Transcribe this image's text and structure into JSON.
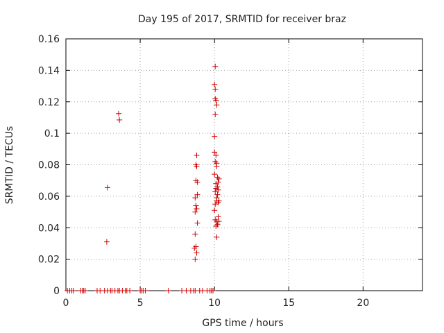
{
  "chart_data": {
    "type": "scatter",
    "title": "Day 195 of 2017, SRMTID for receiver braz",
    "xlabel": "GPS time / hours",
    "ylabel": "SRMTID / TECUs",
    "xlim": [
      0,
      24
    ],
    "ylim": [
      0,
      0.16
    ],
    "xticks": [
      0,
      5,
      10,
      15,
      20
    ],
    "xtick_labels": [
      "0",
      "5",
      "10",
      "15",
      "20"
    ],
    "yticks": [
      0,
      0.02,
      0.04,
      0.06,
      0.08,
      0.1,
      0.12,
      0.14,
      0.16
    ],
    "ytick_labels": [
      "0",
      "0.02",
      "0.04",
      "0.06",
      "0.08",
      "0.1",
      "0.12",
      "0.14",
      "0.16"
    ],
    "grid": true,
    "marker": "+",
    "color": "#cc0000",
    "series": [
      {
        "name": "SRMTID",
        "points": [
          [
            3.55,
            0.1125
          ],
          [
            3.6,
            0.1085
          ],
          [
            2.8,
            0.0655
          ],
          [
            2.75,
            0.031
          ],
          [
            10.05,
            0.1425
          ],
          [
            10.0,
            0.131
          ],
          [
            10.05,
            0.128
          ],
          [
            10.05,
            0.122
          ],
          [
            10.1,
            0.121
          ],
          [
            10.15,
            0.118
          ],
          [
            10.05,
            0.112
          ],
          [
            10.0,
            0.098
          ],
          [
            10.0,
            0.088
          ],
          [
            10.1,
            0.086
          ],
          [
            10.05,
            0.082
          ],
          [
            10.15,
            0.081
          ],
          [
            10.15,
            0.079
          ],
          [
            10.0,
            0.074
          ],
          [
            10.2,
            0.072
          ],
          [
            10.3,
            0.071
          ],
          [
            10.25,
            0.069
          ],
          [
            10.1,
            0.068
          ],
          [
            10.2,
            0.066
          ],
          [
            10.1,
            0.065
          ],
          [
            10.25,
            0.064
          ],
          [
            10.05,
            0.063
          ],
          [
            10.2,
            0.061
          ],
          [
            10.15,
            0.059
          ],
          [
            10.15,
            0.057
          ],
          [
            10.25,
            0.056
          ],
          [
            10.05,
            0.055
          ],
          [
            10.3,
            0.057
          ],
          [
            10.0,
            0.051
          ],
          [
            10.25,
            0.047
          ],
          [
            10.05,
            0.045
          ],
          [
            10.15,
            0.044
          ],
          [
            10.3,
            0.044
          ],
          [
            10.2,
            0.042
          ],
          [
            10.1,
            0.041
          ],
          [
            10.15,
            0.034
          ],
          [
            8.8,
            0.086
          ],
          [
            8.75,
            0.08
          ],
          [
            8.8,
            0.079
          ],
          [
            8.75,
            0.07
          ],
          [
            8.85,
            0.069
          ],
          [
            8.85,
            0.061
          ],
          [
            8.7,
            0.059
          ],
          [
            8.75,
            0.054
          ],
          [
            8.8,
            0.052
          ],
          [
            8.7,
            0.05
          ],
          [
            8.85,
            0.043
          ],
          [
            8.7,
            0.036
          ],
          [
            8.75,
            0.028
          ],
          [
            8.65,
            0.027
          ],
          [
            8.8,
            0.024
          ],
          [
            8.7,
            0.02
          ],
          [
            0.1,
            0
          ],
          [
            0.25,
            0
          ],
          [
            0.4,
            0
          ],
          [
            0.5,
            0
          ],
          [
            1.0,
            0
          ],
          [
            1.1,
            0
          ],
          [
            1.2,
            0
          ],
          [
            1.3,
            0
          ],
          [
            2.1,
            0
          ],
          [
            2.3,
            0
          ],
          [
            2.6,
            0
          ],
          [
            2.8,
            0
          ],
          [
            3.0,
            0
          ],
          [
            3.1,
            0
          ],
          [
            3.3,
            0
          ],
          [
            3.5,
            0
          ],
          [
            3.6,
            0
          ],
          [
            3.8,
            0
          ],
          [
            4.0,
            0
          ],
          [
            4.1,
            0
          ],
          [
            4.3,
            0
          ],
          [
            5.0,
            0
          ],
          [
            5.1,
            0
          ],
          [
            5.2,
            0
          ],
          [
            5.35,
            0
          ],
          [
            6.9,
            0
          ],
          [
            7.8,
            0
          ],
          [
            8.1,
            0
          ],
          [
            8.4,
            0
          ],
          [
            8.6,
            0
          ],
          [
            8.7,
            0
          ],
          [
            9.0,
            0
          ],
          [
            9.2,
            0
          ],
          [
            9.5,
            0
          ],
          [
            9.7,
            0
          ],
          [
            9.8,
            0
          ],
          [
            9.9,
            0
          ]
        ]
      }
    ]
  }
}
